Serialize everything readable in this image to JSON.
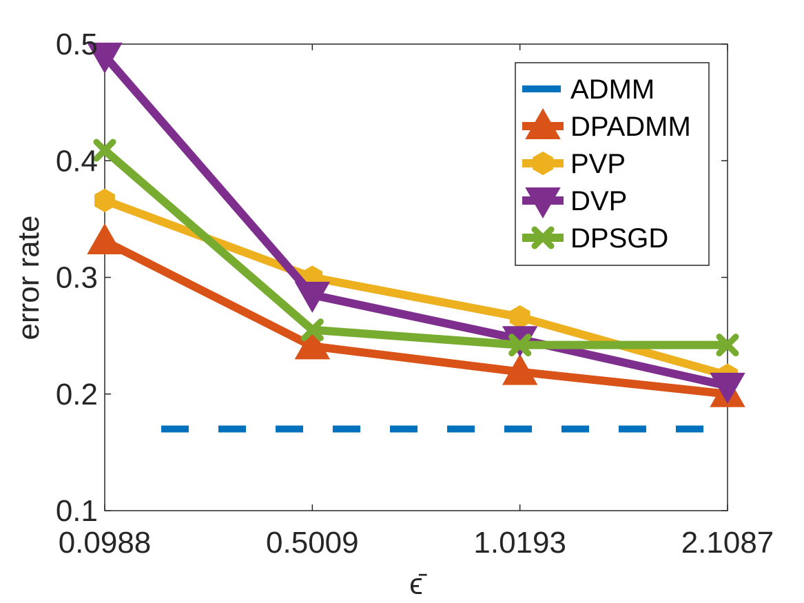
{
  "chart_data": {
    "type": "line",
    "categories": [
      "0.0988",
      "0.5009",
      "1.0193",
      "2.1087"
    ],
    "xlabel": "ϵ̄",
    "ylabel": "error rate",
    "ylim": [
      0.1,
      0.5
    ],
    "yticks": [
      "0.1",
      "0.2",
      "0.3",
      "0.4",
      "0.5"
    ],
    "legend_position": "top-right",
    "grid": false,
    "series": [
      {
        "name": "ADMM",
        "values": [
          0.17,
          0.17,
          0.17,
          0.17
        ],
        "color": "#0072BD",
        "style": "dashed",
        "marker": "none"
      },
      {
        "name": "DPADMM",
        "values": [
          0.331,
          0.241,
          0.219,
          0.2
        ],
        "color": "#D95319",
        "style": "solid",
        "marker": "triangle-up"
      },
      {
        "name": "PVP",
        "values": [
          0.366,
          0.3,
          0.266,
          0.216
        ],
        "color": "#EDB120",
        "style": "solid",
        "marker": "hexagon"
      },
      {
        "name": "DVP",
        "values": [
          0.49,
          0.285,
          0.247,
          0.207
        ],
        "color": "#7E2F8E",
        "style": "solid",
        "marker": "triangle-down"
      },
      {
        "name": "DPSGD",
        "values": [
          0.409,
          0.255,
          0.242,
          0.242
        ],
        "color": "#77AC30",
        "style": "solid",
        "marker": "x"
      }
    ]
  }
}
